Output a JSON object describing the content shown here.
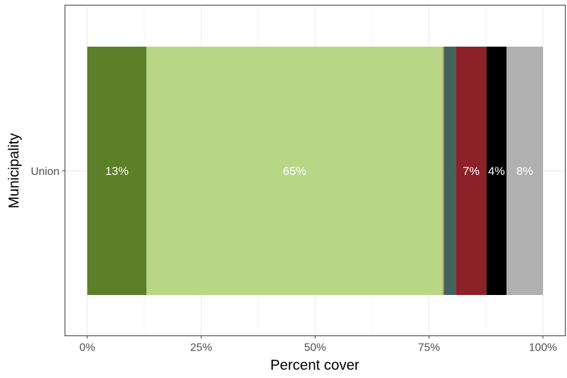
{
  "chart_data": {
    "type": "bar",
    "orientation": "horizontal",
    "stacked": true,
    "title": "",
    "xlabel": "Percent cover",
    "ylabel": "Municipality",
    "categories": [
      "Union"
    ],
    "xlim": [
      0,
      100
    ],
    "x_ticks": [
      "0%",
      "25%",
      "50%",
      "75%",
      "100%"
    ],
    "grid": true,
    "legend": "none",
    "segments": [
      {
        "value": 13.0,
        "color": "#5b8027",
        "label": "13%"
      },
      {
        "value": 65.0,
        "color": "#b7d787",
        "label": "65%"
      },
      {
        "value": 0.3,
        "color": "#c8894a",
        "label": ""
      },
      {
        "value": 2.6,
        "color": "#41635c",
        "label": ""
      },
      {
        "value": 6.7,
        "color": "#8c2128",
        "label": "7%"
      },
      {
        "value": 4.4,
        "color": "#000000",
        "label": "4%"
      },
      {
        "value": 8.0,
        "color": "#b0b0b0",
        "label": "8%"
      }
    ]
  }
}
